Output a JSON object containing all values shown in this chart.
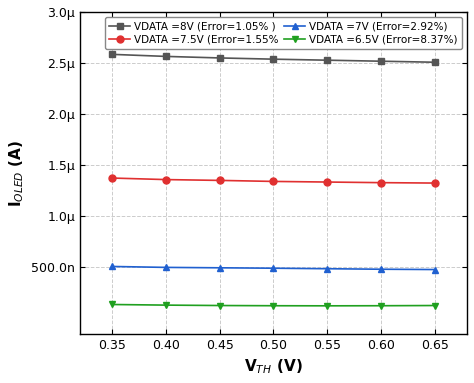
{
  "x": [
    0.35,
    0.4,
    0.45,
    0.5,
    0.55,
    0.6,
    0.65
  ],
  "series": [
    {
      "label": "VDATA =8V (Error=1.05% )",
      "color": "#555555",
      "marker": "s",
      "markersize": 5,
      "y": [
        2.585e-06,
        2.565e-06,
        2.55e-06,
        2.538e-06,
        2.528e-06,
        2.518e-06,
        2.508e-06
      ]
    },
    {
      "label": "VDATA =7.5V (Error=1.55%",
      "color": "#e03030",
      "marker": "o",
      "markersize": 5,
      "y": [
        1.375e-06,
        1.36e-06,
        1.352e-06,
        1.342e-06,
        1.336e-06,
        1.33e-06,
        1.326e-06
      ]
    },
    {
      "label": "VDATA =7V (Error=2.92%)",
      "color": "#2060d0",
      "marker": "^",
      "markersize": 5,
      "y": [
        5.1e-07,
        5.01e-07,
        4.97e-07,
        4.93e-07,
        4.88e-07,
        4.83e-07,
        4.8e-07
      ]
    },
    {
      "label": "VDATA =6.5V (Error=8.37%)",
      "color": "#20a020",
      "marker": "v",
      "markersize": 5,
      "y": [
        1.38e-07,
        1.32e-07,
        1.28e-07,
        1.26e-07,
        1.25e-07,
        1.26e-07,
        1.28e-07
      ]
    }
  ],
  "xlabel": "V$_{TH}$ (V)",
  "ylabel": "I$_{OLED}$ (A)",
  "xlim": [
    0.32,
    0.68
  ],
  "ylim": [
    -1.5e-07,
    3e-06
  ],
  "yticks": [
    5e-07,
    1e-06,
    1.5e-06,
    2e-06,
    2.5e-06,
    3e-06
  ],
  "ytick_labels": [
    "500.0n",
    "1.0μ",
    "1.5μ",
    "2.0μ",
    "2.5μ",
    "3.0μ"
  ],
  "xticks": [
    0.35,
    0.4,
    0.45,
    0.5,
    0.55,
    0.6,
    0.65
  ],
  "background_color": "#ffffff",
  "grid_color": "#cccccc",
  "legend_fontsize": 7.5,
  "axis_fontsize": 11,
  "tick_fontsize": 9
}
